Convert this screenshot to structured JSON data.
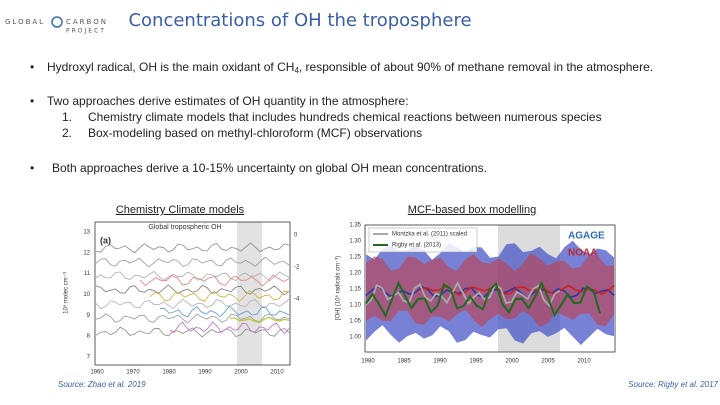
{
  "header": {
    "logo": {
      "line1_left": "GLOBAL",
      "line1_right": "CARBON",
      "line2": "PROJECT"
    },
    "title": "Concentrations of OH the troposphere"
  },
  "bullets": [
    {
      "text_before": "Hydroxyl radical, OH is the main oxidant of CH",
      "subscript": "4",
      "text_after": ", responsible of about 90% of methane removal in the atmosphere."
    },
    {
      "text": "Two approaches derive estimates of OH quantity in the atmosphere:",
      "items": [
        {
          "number": "1.",
          "text": "Chemistry climate models that includes hundreds chemical reactions between numerous species"
        },
        {
          "number": "2.",
          "text": "Box-modeling based on methyl-chloroform (MCF) observations"
        }
      ]
    },
    {
      "text": "Both approaches derive a 10-15% uncertainty on global OH mean concentrations."
    }
  ],
  "figures": [
    {
      "caption": "Chemistry Climate models",
      "panel_label": "(a)",
      "panel_title": "Global tropospheric OH",
      "y_label": "10⁵ molec cm⁻³",
      "y_ticks": [
        "13",
        "12",
        "11",
        "10",
        "9",
        "8",
        "7"
      ],
      "y2_ticks": [
        "0",
        "-2",
        "-4"
      ],
      "x_ticks": [
        "1960",
        "1970",
        "1980",
        "1990",
        "2000",
        "2010"
      ],
      "source": "Source: Zhao et al. 2019"
    },
    {
      "caption": "MCF-based box modelling",
      "legend": [
        "Montzka et al. (2011) scaled",
        "Rigby et al. (2013)"
      ],
      "networks": [
        "AGAGE",
        "NOAA"
      ],
      "y_label": "[OH] (10⁶ radicals cm⁻³)",
      "y_ticks": [
        "1.35",
        "1.30",
        "1.25",
        "1.20",
        "1.15",
        "1.10",
        "1.05",
        "1.00"
      ],
      "x_ticks": [
        "1980",
        "1985",
        "1990",
        "1995",
        "2000",
        "2005",
        "2010"
      ],
      "source": "Source: Rigby et al. 2017"
    }
  ]
}
